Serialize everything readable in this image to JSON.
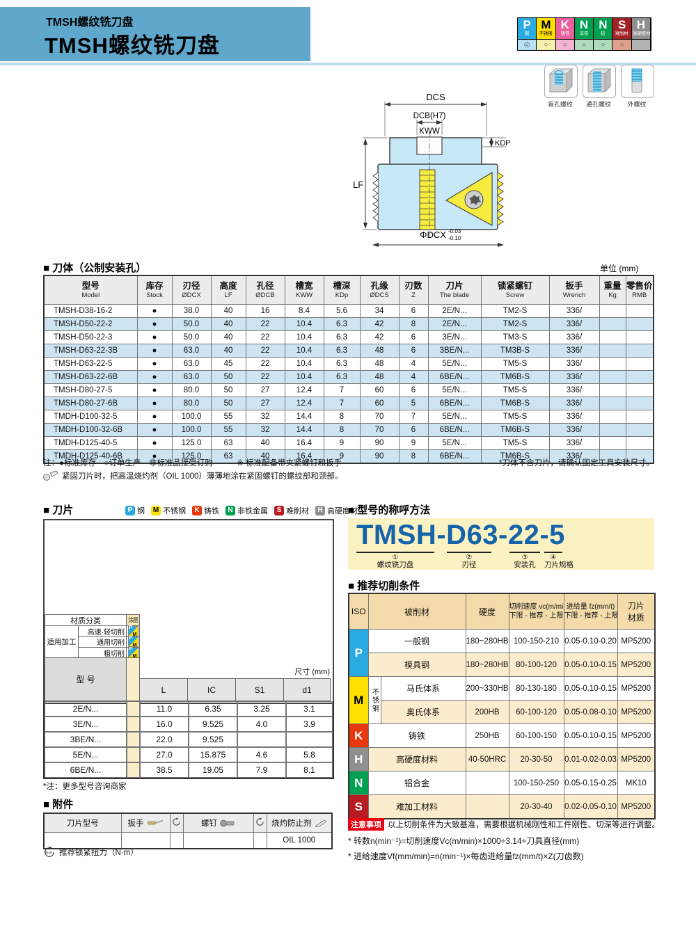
{
  "header": {
    "subtitle": "TMSH螺纹铣刀盘",
    "title": "TMSH螺纹铣刀盘"
  },
  "material_legend": {
    "columns": [
      {
        "letter": "P",
        "label": "钢",
        "color": "#29abe2",
        "letter_color": "#fff",
        "cell_color": "#b7e1f4",
        "marker": "◎"
      },
      {
        "letter": "M",
        "label": "不锈钢",
        "color": "#ffe100",
        "letter_color": "#000",
        "cell_color": "#f6f0ad",
        "marker": "○"
      },
      {
        "letter": "K",
        "label": "铸铁",
        "color": "#ea5f9e",
        "letter_color": "#fff",
        "cell_color": "#f4b3d0",
        "marker": "○"
      },
      {
        "letter": "N",
        "label": "非铁",
        "color": "#00a051",
        "letter_color": "#fff",
        "cell_color": "#aedcbd",
        "marker": "○"
      },
      {
        "letter": "N",
        "label": "铝",
        "color": "#00a051",
        "letter_color": "#fff",
        "cell_color": "#aedcbd",
        "marker": "○"
      },
      {
        "letter": "S",
        "label": "难削材",
        "color": "#a32125",
        "letter_color": "#fff",
        "cell_color": "#dfa08e",
        "marker": "○"
      },
      {
        "letter": "H",
        "label": "高硬度材",
        "color": "#8f8f8f",
        "letter_color": "#fff",
        "cell_color": "#b3b3b3",
        "marker": ""
      }
    ]
  },
  "diagram": {
    "dcs": "DCS",
    "dcb": "DCB(H7)",
    "kww": "KWW",
    "kdp": "KDP",
    "lf": "LF",
    "dcx": "ΦDCX",
    "tol_top": "-0.03",
    "tol_bottom": "-0.10"
  },
  "thread_icons": [
    {
      "label": "盲孔螺纹"
    },
    {
      "label": "通孔螺纹"
    },
    {
      "label": "外螺纹"
    }
  ],
  "body": {
    "title": "■ 刀体（公制安装孔）",
    "unit": "单位 (mm)",
    "table": {
      "headers": [
        {
          "zh": "型号",
          "en": "Model"
        },
        {
          "zh": "库存",
          "en": "Stock"
        },
        {
          "zh": "刃径",
          "en": "ØDCX"
        },
        {
          "zh": "高度",
          "en": "LF"
        },
        {
          "zh": "孔径",
          "en": "ØDCB"
        },
        {
          "zh": "槽宽",
          "en": "KWW"
        },
        {
          "zh": "槽深",
          "en": "KDp"
        },
        {
          "zh": "孔缘",
          "en": "ØDCS"
        },
        {
          "zh": "刃数",
          "en": "Z"
        },
        {
          "zh": "刀片",
          "en": "The blade"
        },
        {
          "zh": "锁紧螺钉",
          "en": "Screw"
        },
        {
          "zh": "扳手",
          "en": "Wrench"
        },
        {
          "zh": "重量",
          "en": "Kg"
        },
        {
          "zh": "零售价",
          "en": "RMB"
        }
      ],
      "rows": [
        [
          "TMSH-D38-16-2",
          "●",
          "38.0",
          "40",
          "16",
          "8.4",
          "5.6",
          "34",
          "6",
          "2E/N...",
          "TM2-S",
          "336/",
          "",
          ""
        ],
        [
          "TMSH-D50-22-2",
          "●",
          "50.0",
          "40",
          "22",
          "10.4",
          "6.3",
          "42",
          "8",
          "2E/N...",
          "TM2-S",
          "336/",
          "",
          ""
        ],
        [
          "TMSH-D50-22-3",
          "●",
          "50.0",
          "40",
          "22",
          "10.4",
          "6.3",
          "42",
          "6",
          "3E/N...",
          "TM3-S",
          "336/",
          "",
          ""
        ],
        [
          "TMSH-D63-22-3B",
          "●",
          "63.0",
          "40",
          "22",
          "10.4",
          "6.3",
          "48",
          "6",
          "3BE/N...",
          "TM3B-S",
          "336/",
          "",
          ""
        ],
        [
          "TMSH-D63-22-5",
          "●",
          "63.0",
          "45",
          "22",
          "10.4",
          "6.3",
          "48",
          "4",
          "5E/N...",
          "TM5-S",
          "336/",
          "",
          ""
        ],
        [
          "TMSH-D63-22-6B",
          "●",
          "63.0",
          "50",
          "22",
          "10.4",
          "6.3",
          "48",
          "4",
          "6BE/N...",
          "TM6B-S",
          "336/",
          "",
          ""
        ],
        [
          "TMSH-D80-27-5",
          "●",
          "80.0",
          "50",
          "27",
          "12.4",
          "7",
          "60",
          "6",
          "5E/N...",
          "TM5-S",
          "336/",
          "",
          ""
        ],
        [
          "TMSH-D80-27-6B",
          "●",
          "80.0",
          "50",
          "27",
          "12.4",
          "7",
          "60",
          "5",
          "6BE/N...",
          "TM6B-S",
          "336/",
          "",
          ""
        ],
        [
          "TMDH-D100-32-5",
          "●",
          "100.0",
          "55",
          "32",
          "14.4",
          "8",
          "70",
          "7",
          "5E/N...",
          "TM5-S",
          "336/",
          "",
          ""
        ],
        [
          "TMDH-D100-32-6B",
          "●",
          "100.0",
          "55",
          "32",
          "14.4",
          "8",
          "70",
          "6",
          "6BE/N...",
          "TM6B-S",
          "336/",
          "",
          ""
        ],
        [
          "TMDH-D125-40-5",
          "●",
          "125.0",
          "63",
          "40",
          "16.4",
          "9",
          "90",
          "9",
          "5E/N...",
          "TM5-S",
          "336/",
          "",
          ""
        ],
        [
          "TMDH-D125-40-6B",
          "●",
          "125.0",
          "63",
          "40",
          "16.4",
          "9",
          "90",
          "8",
          "6BE/N...",
          "TM6B-S",
          "336/",
          "",
          ""
        ]
      ]
    },
    "note_left": "注：●标准库存　○订单生产　非标准品接受订购",
    "note_mid": "※ 标准配备带夹紧螺钉和扳手",
    "note_right": "*刀体不含刀片，请确认固定工具安装尺寸。",
    "note_oil": "紧固刀片时，把高温烧灼剂（OIL 1000）薄薄地涂在紧固螺钉的螺纹部和颈部。"
  },
  "insert": {
    "title": "■ 刀片",
    "legend": [
      {
        "letter": "P",
        "label": "钢",
        "color": "#29abe2",
        "letter_color": "#fff"
      },
      {
        "letter": "M",
        "label": "不锈钢",
        "color": "#ffe100",
        "letter_color": "#000"
      },
      {
        "letter": "K",
        "label": "铸铁",
        "color": "#e8380d",
        "letter_color": "#fff"
      },
      {
        "letter": "N",
        "label": "非铁金属",
        "color": "#00a051",
        "letter_color": "#fff"
      },
      {
        "letter": "S",
        "label": "难削材",
        "color": "#b81c22",
        "letter_color": "#fff"
      },
      {
        "letter": "H",
        "label": "高硬度材",
        "color": "#8f8f8f",
        "letter_color": "#fff"
      }
    ],
    "matrix": {
      "header_left": "材质分类",
      "header_right": "涂层",
      "row_label": "适用加工",
      "rows": [
        "高速·轻切削",
        "通用切削",
        "粗切削"
      ],
      "icon_p": "P",
      "icon_m": "M"
    },
    "size_table": {
      "model_header": "型 号",
      "unit": "尺寸 (mm)",
      "columns": [
        "L",
        "IC",
        "S1",
        "d1"
      ],
      "rows": [
        {
          "model": "2E/N...",
          "L": "11.0",
          "IC": "6.35",
          "S1": "3.25",
          "d1": "3.1"
        },
        {
          "model": "3E/N...",
          "L": "16.0",
          "IC": "9.525",
          "S1": "4.0",
          "d1": "3.9"
        },
        {
          "model": "3BE/N...",
          "L": "22.0",
          "IC": "9.525",
          "S1": "",
          "d1": ""
        },
        {
          "model": "5E/N...",
          "L": "27.0",
          "IC": "15.875",
          "S1": "4.6",
          "d1": "5.8"
        },
        {
          "model": "6BE/N...",
          "L": "38.5",
          "IC": "19.05",
          "S1": "7.9",
          "d1": "8.1"
        }
      ]
    },
    "note": "*注：更多型号咨询商家"
  },
  "accessories": {
    "title": "■ 附件",
    "col_model": "刀片型号",
    "col_wrench": "扳手",
    "col_screw": "螺钉",
    "col_oil": "烧灼防止剂",
    "oil_value": "OIL 1000",
    "torque_unit": "N·m",
    "torque_note": "推荐锁紧扭力（N·m）"
  },
  "designation": {
    "title": "■ 型号的称呼方法",
    "model": "TMSH-D63-22-5",
    "parts": [
      {
        "num": "①",
        "label": "螺纹铣刀盘"
      },
      {
        "num": "②",
        "label": "刃径"
      },
      {
        "num": "③",
        "label": "安装孔"
      },
      {
        "num": "④",
        "label": "刀片规格"
      }
    ]
  },
  "cutting": {
    "title": "■ 推荐切削条件",
    "headers": {
      "iso": "ISO",
      "material": "被削材",
      "hardness": "硬度",
      "speed_line1": "切削速度 vc(m/min)",
      "speed_line2": "下限 - 推荐 - 上限",
      "feed_line1": "进给量 fz(mm/t)",
      "feed_line2": "下限 - 推荐 - 上限",
      "grade_line1": "刀片",
      "grade_line2": "材质"
    },
    "rows": [
      {
        "iso": {
          "letter": "P",
          "color": "#29abe2",
          "text": "#fff",
          "rowspan": 2
        },
        "material": "一般钢",
        "material_span": 2,
        "hardness": "180~280HB",
        "speed": "100-150-210",
        "feed": "0.05-0.10-0.20",
        "grade": "MP5200",
        "shade": false
      },
      {
        "material": "模具钢",
        "material_span": 2,
        "hardness": "180~280HB",
        "speed": "80-100-120",
        "feed": "0.05-0.10-0.15",
        "grade": "MP5200",
        "shade": true
      },
      {
        "iso": {
          "letter": "M",
          "color": "#ffe100",
          "text": "#000",
          "rowspan": 2
        },
        "sub": {
          "label": "不锈钢",
          "rowspan": 2
        },
        "material": "马氏体系",
        "material_span": 1,
        "hardness": "200~330HB",
        "speed": "80-130-180",
        "feed": "0.05-0.10-0.15",
        "grade": "MP5200",
        "shade": false
      },
      {
        "material": "奥氏体系",
        "material_span": 1,
        "hardness": "200HB",
        "speed": "60-100-120",
        "feed": "0.05-0.08-0.10",
        "grade": "MP5200",
        "shade": true
      },
      {
        "iso": {
          "letter": "K",
          "color": "#e8380d",
          "text": "#fff",
          "rowspan": 1
        },
        "material": "铸铁",
        "material_span": 2,
        "hardness": "250HB",
        "speed": "60-100-150",
        "feed": "0.05-0.10-0.15",
        "grade": "MP5200",
        "shade": false
      },
      {
        "iso": {
          "letter": "H",
          "color": "#8f8f8f",
          "text": "#fff",
          "rowspan": 1
        },
        "material": "高硬度材料",
        "material_span": 2,
        "hardness": "40-50HRC",
        "speed": "20-30-50",
        "feed": "0.01-0.02-0.03",
        "grade": "MP5200",
        "shade": true
      },
      {
        "iso": {
          "letter": "N",
          "color": "#00a051",
          "text": "#fff",
          "rowspan": 1
        },
        "material": "铝合金",
        "material_span": 2,
        "hardness": "",
        "speed": "100-150-250",
        "feed": "0.05-0.15-0.25",
        "grade": "MK10",
        "shade": false
      },
      {
        "iso": {
          "letter": "S",
          "color": "#b81c22",
          "text": "#fff",
          "rowspan": 1
        },
        "material": "难加工材料",
        "material_span": 2,
        "hardness": "",
        "speed": "20-30-40",
        "feed": "0.02-0.05-0.10",
        "grade": "MP5200",
        "shade": true
      }
    ],
    "caution_badge": "注意事项",
    "caution": "以上切削条件为大致基准，需要根据机械刚性和工件刚性、切深等进行调整。",
    "formulas": [
      "* 转数n(min⁻¹)=切削速度Vc(m/min)×1000÷3.14÷刀具直径(mm)",
      "* 进给速度Vf(mm/min)=n(min⁻¹)×每齿进给量fz(mm/t)×Z(刀齿数)"
    ]
  }
}
